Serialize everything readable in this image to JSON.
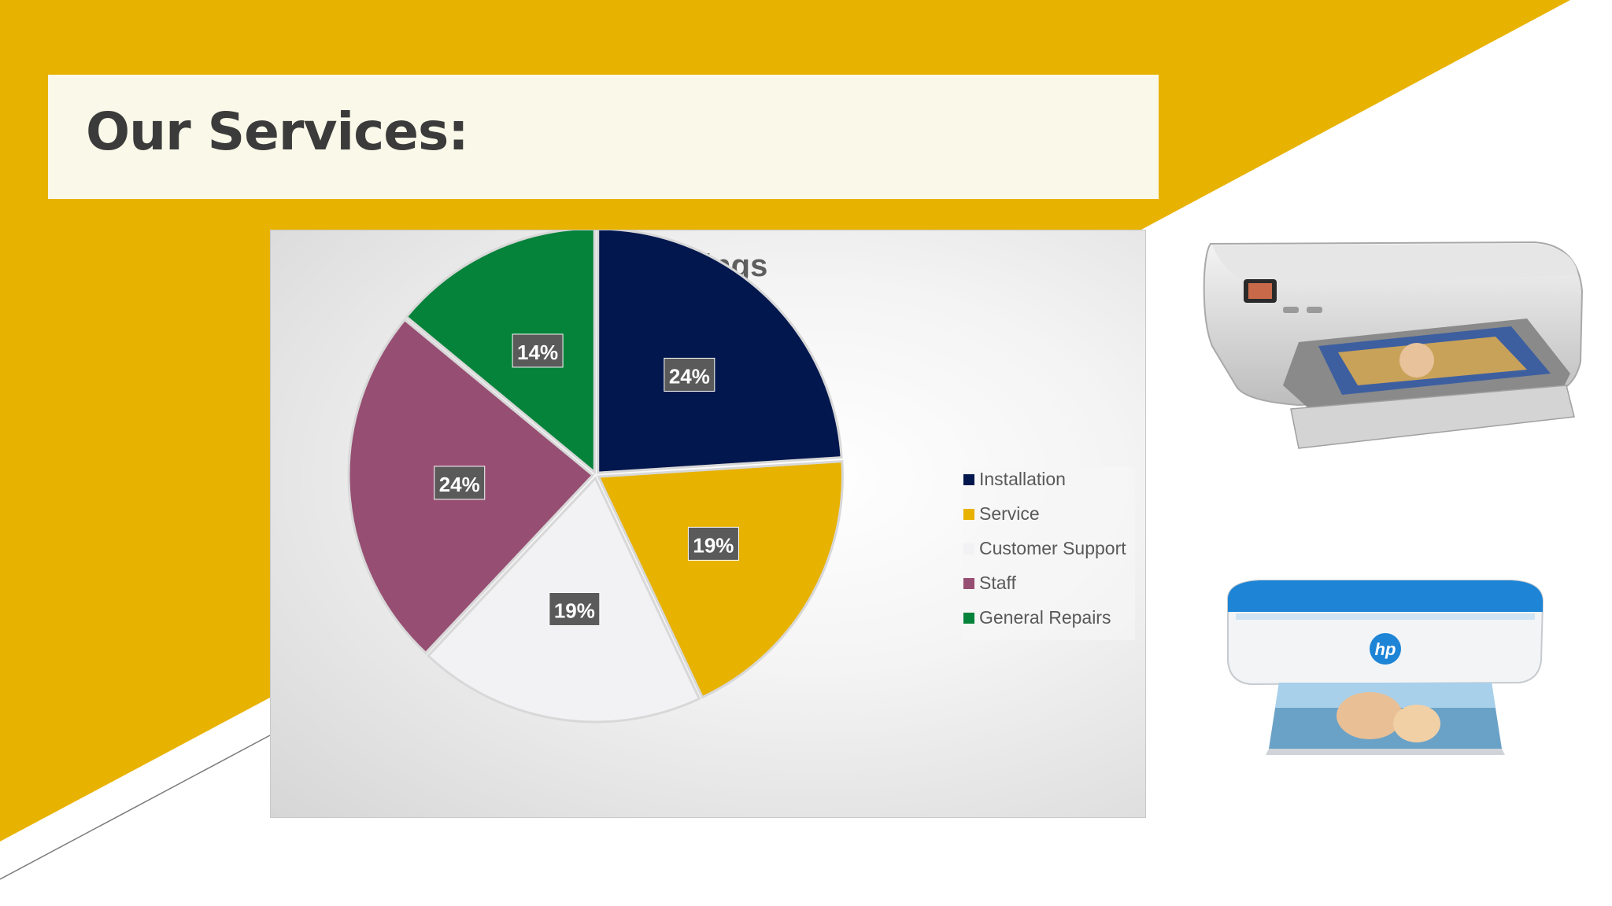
{
  "slide": {
    "title": "Our Services:"
  },
  "colors": {
    "accent_gold": "#e8b200",
    "title_bg": "#faf8e8"
  },
  "chart_data": {
    "type": "pie",
    "title": "Ratings",
    "categories": [
      "Installation",
      "Service",
      "Customer Support",
      "Staff",
      "General Repairs"
    ],
    "values": [
      24,
      19,
      19,
      24,
      14
    ],
    "labels": [
      "24%",
      "19%",
      "19%",
      "24%",
      "14%"
    ],
    "colors": [
      "#02174d",
      "#e8b200",
      "#f2f2f4",
      "#974e73",
      "#05833a"
    ],
    "legend": "right"
  },
  "images": {
    "printer_1": "hp-photosmart-printer-icon",
    "printer_2": "hp-deskjet-printer-icon",
    "printer_2_logo": "hp"
  }
}
